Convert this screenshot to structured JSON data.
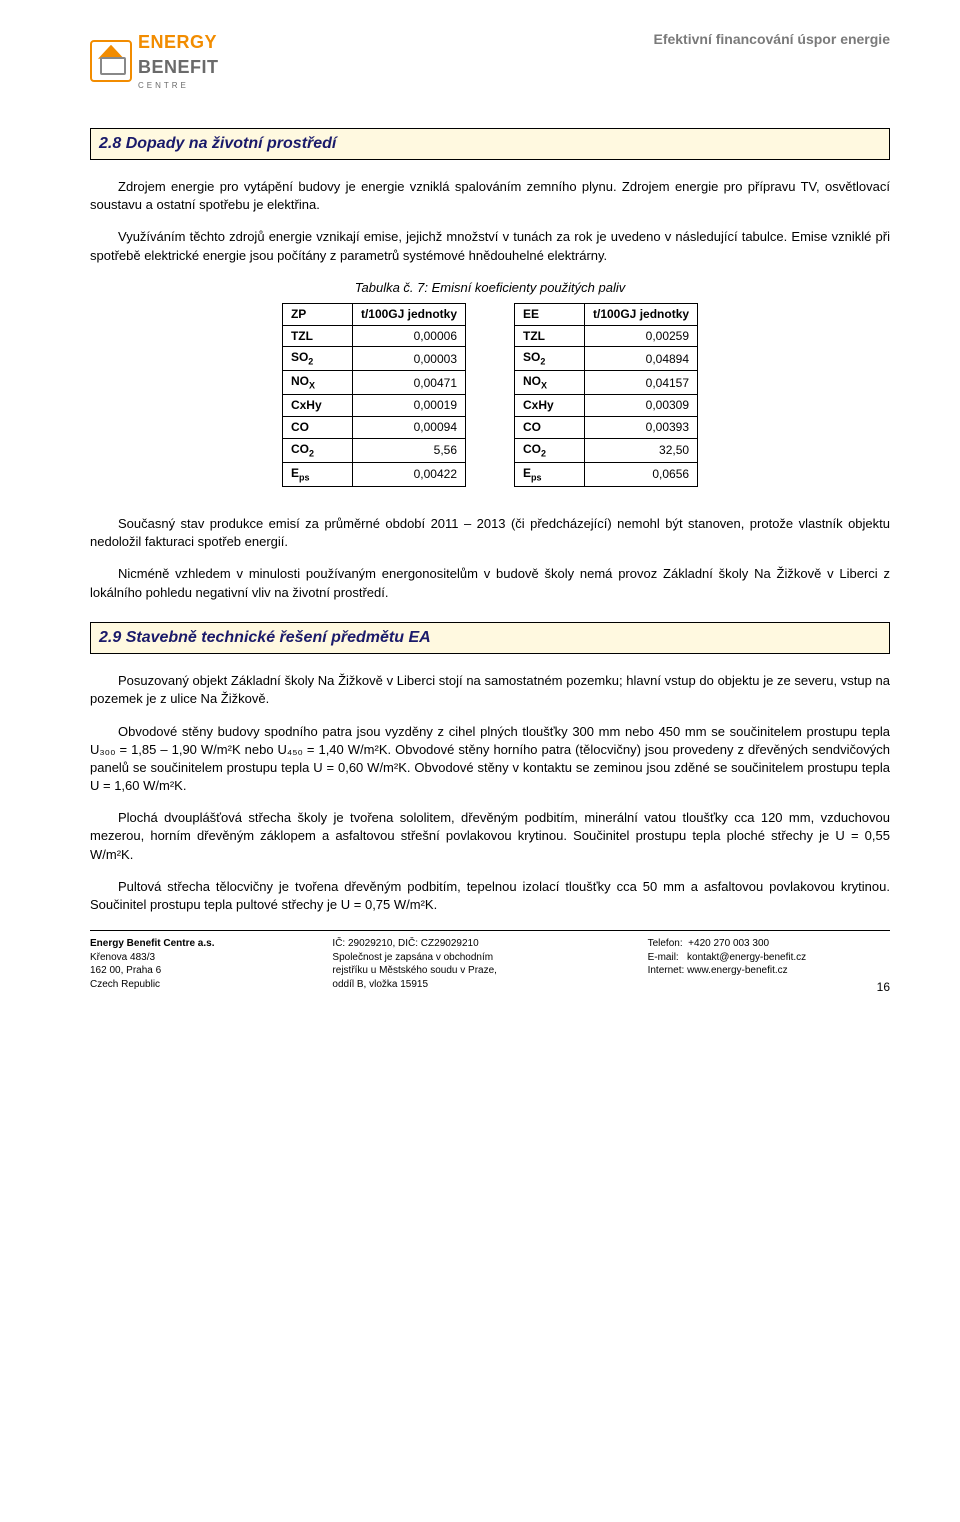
{
  "header": {
    "logo_line1": "ENERGY",
    "logo_line2": "BENEFIT",
    "logo_line3": "CENTRE",
    "right_text": "Efektivní financování úspor energie"
  },
  "section28": {
    "heading": "2.8 Dopady na životní prostředí",
    "p1": "Zdrojem energie pro vytápění budovy je energie vzniklá spalováním zemního plynu. Zdrojem energie pro přípravu TV, osvětlovací soustavu a ostatní spotřebu je elektřina.",
    "p2": "Využíváním těchto zdrojů energie vznikají emise, jejichž množství v tunách za rok je uvedeno v následující tabulce. Emise vzniklé při spotřebě elektrické energie jsou počítány z parametrů systémové hnědouhelné elektrárny.",
    "table_caption": "Tabulka č. 7: Emisní koeficienty použitých paliv",
    "table_left": {
      "header_col1": "ZP",
      "header_col2": "t/100GJ jednotky",
      "rows": [
        {
          "label": "TZL",
          "sub": "",
          "value": "0,00006"
        },
        {
          "label": "SO",
          "sub": "2",
          "value": "0,00003"
        },
        {
          "label": "NO",
          "sub": "X",
          "value": "0,00471"
        },
        {
          "label": "CxHy",
          "sub": "",
          "value": "0,00019"
        },
        {
          "label": "CO",
          "sub": "",
          "value": "0,00094"
        },
        {
          "label": "CO",
          "sub": "2",
          "value": "5,56"
        },
        {
          "label": "E",
          "sub": "ps",
          "value": "0,00422"
        }
      ]
    },
    "table_right": {
      "header_col1": "EE",
      "header_col2": "t/100GJ jednotky",
      "rows": [
        {
          "label": "TZL",
          "sub": "",
          "value": "0,00259"
        },
        {
          "label": "SO",
          "sub": "2",
          "value": "0,04894"
        },
        {
          "label": "NO",
          "sub": "X",
          "value": "0,04157"
        },
        {
          "label": "CxHy",
          "sub": "",
          "value": "0,00309"
        },
        {
          "label": "CO",
          "sub": "",
          "value": "0,00393"
        },
        {
          "label": "CO",
          "sub": "2",
          "value": "32,50"
        },
        {
          "label": "E",
          "sub": "ps",
          "value": "0,0656"
        }
      ]
    },
    "p3": "Současný stav produkce emisí za průměrné období 2011 – 2013 (či předcházející) nemohl být stanoven, protože vlastník objektu nedoložil fakturaci spotřeb energií.",
    "p4": "Nicméně vzhledem v minulosti používaným energonositelům v budově školy nemá provoz Základní školy Na Žižkově v Liberci z lokálního pohledu negativní vliv na životní prostředí."
  },
  "section29": {
    "heading": "2.9 Stavebně technické řešení předmětu EA",
    "p1": "Posuzovaný objekt Základní školy Na Žižkově v Liberci stojí na samostatném pozemku; hlavní vstup do objektu je ze severu, vstup na pozemek je z ulice Na Žižkově.",
    "p2": "Obvodové stěny budovy spodního patra jsou vyzděny z cihel plných tloušťky 300 mm nebo 450 mm se součinitelem prostupu tepla U₃₀₀ = 1,85 – 1,90 W/m²K nebo U₄₅₀ = 1,40 W/m²K. Obvodové stěny horního patra (tělocvičny) jsou provedeny z dřevěných sendvičových panelů se součinitelem prostupu tepla U = 0,60 W/m²K. Obvodové stěny v kontaktu se zeminou jsou zděné se součinitelem prostupu tepla U = 1,60 W/m²K.",
    "p3": "Plochá dvouplášťová střecha školy je tvořena sololitem, dřevěným podbitím, minerální vatou tloušťky cca 120 mm, vzduchovou mezerou, horním dřevěným záklopem a asfaltovou střešní povlakovou krytinou. Součinitel prostupu tepla ploché střechy je U = 0,55 W/m²K.",
    "p4": "Pultová střecha tělocvičny je tvořena dřevěným podbitím, tepelnou izolací tloušťky cca 50 mm a asfaltovou povlakovou krytinou. Součinitel prostupu tepla pultové střechy je U = 0,75 W/m²K."
  },
  "footer": {
    "col1": {
      "l1": "Energy Benefit Centre a.s.",
      "l2": "Křenova 483/3",
      "l3": "162 00, Praha 6",
      "l4": "Czech Republic"
    },
    "col2": {
      "l1": "IČ: 29029210, DIČ: CZ29029210",
      "l2": "Společnost je zapsána v obchodním",
      "l3": "rejstříku u Městského soudu v Praze,",
      "l4": "oddíl B, vložka 15915"
    },
    "col3": {
      "l1a": "Telefon:",
      "l1b": "+420 270 003 300",
      "l2a": "E-mail:",
      "l2b": "kontakt@energy-benefit.cz",
      "l3a": "Internet:",
      "l3b": "www.energy-benefit.cz"
    },
    "page": "16"
  },
  "colors": {
    "heading_bg": "#fff9e0",
    "heading_border": "#000000",
    "heading_text": "#1a1a6a",
    "logo_orange": "#f28c00",
    "logo_grey": "#6a6a6a",
    "header_grey": "#7a7a7a"
  }
}
